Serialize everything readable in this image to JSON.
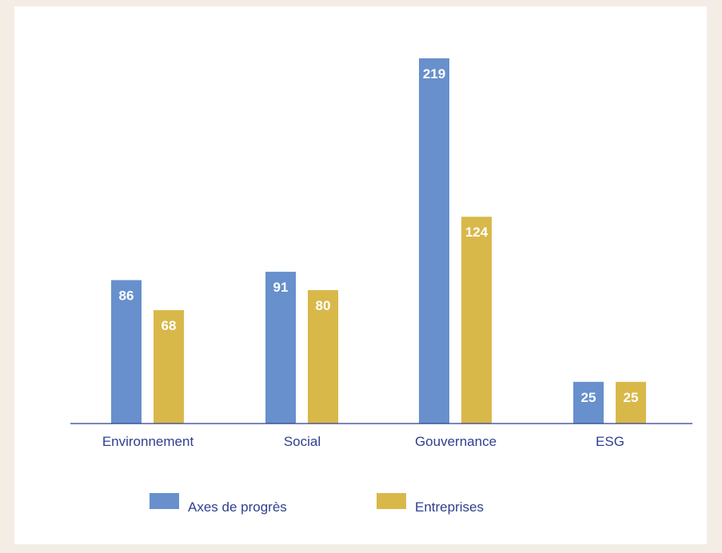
{
  "chart_data": {
    "type": "bar",
    "categories": [
      "Environnement",
      "Social",
      "Gouvernance",
      "ESG"
    ],
    "series": [
      {
        "name": "Axes de progrès",
        "values": [
          86,
          91,
          219,
          25
        ],
        "color": "#6790cc"
      },
      {
        "name": "Entreprises",
        "values": [
          68,
          80,
          124,
          25
        ],
        "color": "#d9b84a"
      }
    ],
    "ylim": [
      0,
      219
    ],
    "grid": false,
    "legend_position": "bottom",
    "axis_color": "#2f3f8f",
    "label_color": "#2f3f8f"
  }
}
